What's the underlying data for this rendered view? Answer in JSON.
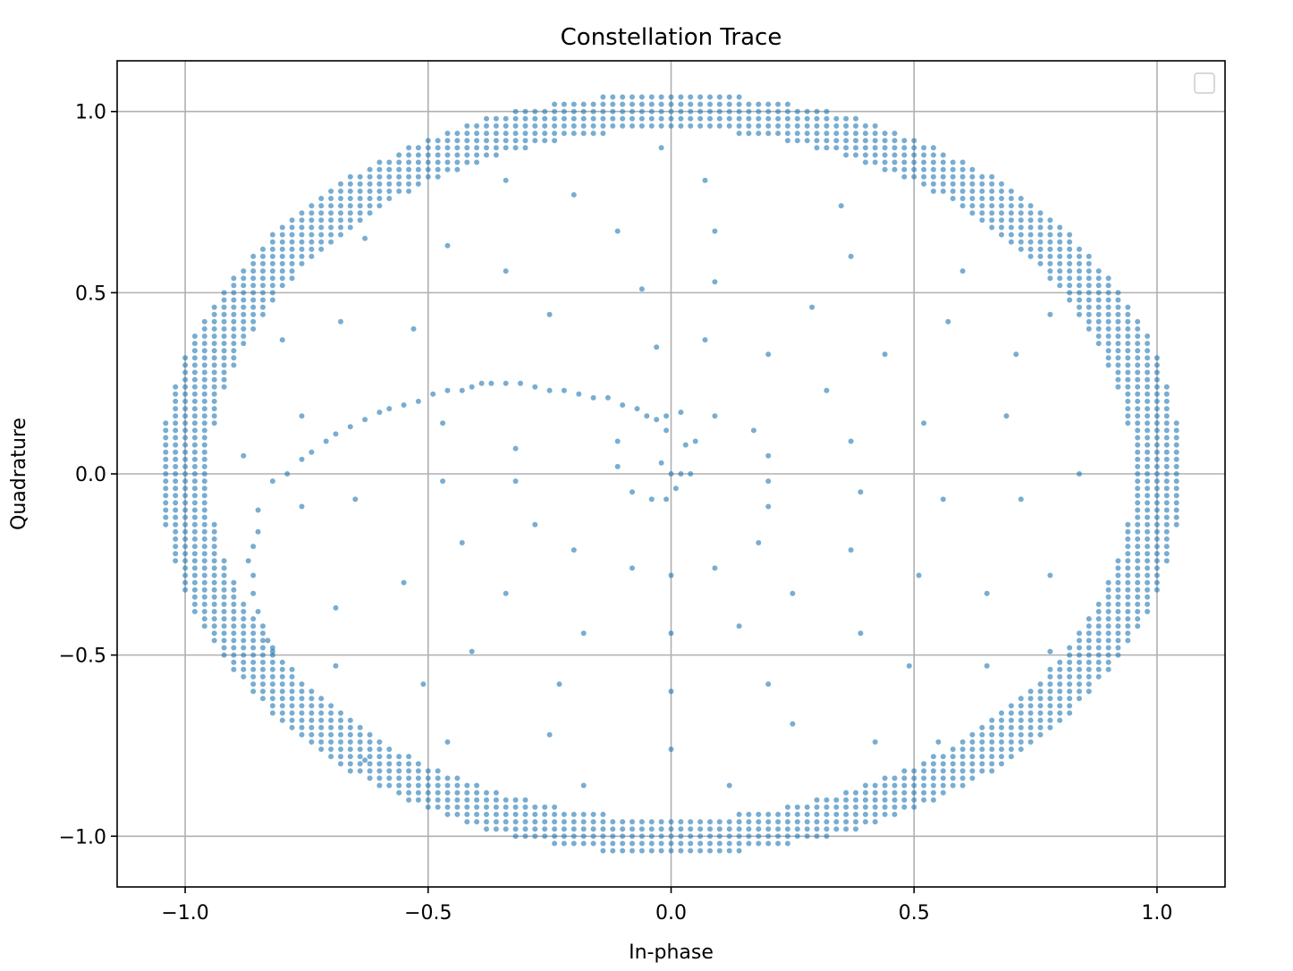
{
  "chart_data": {
    "type": "scatter",
    "title": "Constellation Trace",
    "xlabel": "In-phase",
    "ylabel": "Quadrature",
    "xlim": [
      -1.14,
      1.14
    ],
    "ylim": [
      -1.14,
      1.14
    ],
    "xticks": [
      -1.0,
      -0.5,
      0.0,
      0.5,
      1.0
    ],
    "xtick_labels": [
      "−1.0",
      "−0.5",
      "0.0",
      "0.5",
      "1.0"
    ],
    "yticks": [
      -1.0,
      -0.5,
      0.0,
      0.5,
      1.0
    ],
    "ytick_labels": [
      "−1.0",
      "−0.5",
      "0.0",
      "0.5",
      "1.0"
    ],
    "grid": true,
    "legend": {
      "placement": "top-right",
      "entries": []
    },
    "marker_color": "#1f77b4",
    "marker_alpha": 0.6,
    "series": [
      {
        "ring": {
          "shape": "ellipse",
          "center": [
            0,
            0
          ],
          "rx": 1.0,
          "ry": 1.0,
          "ring_spread": 0.04,
          "dot_spacing": 0.02,
          "samples": 1200
        },
        "inner_arc_points": [
          [
            -0.82,
            -0.02
          ],
          [
            -0.79,
            0.0
          ],
          [
            -0.76,
            0.04
          ],
          [
            -0.74,
            0.06
          ],
          [
            -0.71,
            0.09
          ],
          [
            -0.69,
            0.11
          ],
          [
            -0.66,
            0.13
          ],
          [
            -0.63,
            0.15
          ],
          [
            -0.6,
            0.17
          ],
          [
            -0.58,
            0.18
          ],
          [
            -0.55,
            0.19
          ],
          [
            -0.52,
            0.2
          ],
          [
            -0.49,
            0.22
          ],
          [
            -0.46,
            0.23
          ],
          [
            -0.43,
            0.23
          ],
          [
            -0.41,
            0.24
          ],
          [
            -0.39,
            0.25
          ],
          [
            -0.37,
            0.25
          ],
          [
            -0.34,
            0.25
          ],
          [
            -0.31,
            0.25
          ],
          [
            -0.28,
            0.24
          ],
          [
            -0.25,
            0.23
          ],
          [
            -0.22,
            0.23
          ],
          [
            -0.19,
            0.22
          ],
          [
            -0.16,
            0.21
          ],
          [
            -0.13,
            0.21
          ],
          [
            -0.1,
            0.19
          ],
          [
            -0.07,
            0.18
          ],
          [
            -0.05,
            0.16
          ],
          [
            -0.03,
            0.15
          ],
          [
            -0.01,
            0.16
          ],
          [
            0.0,
            0.0
          ],
          [
            0.02,
            0.0
          ],
          [
            0.04,
            0.0
          ],
          [
            -0.02,
            0.03
          ],
          [
            0.03,
            0.08
          ],
          [
            0.05,
            0.09
          ],
          [
            -0.01,
            0.12
          ],
          [
            0.02,
            0.17
          ],
          [
            -0.11,
            0.09
          ],
          [
            -0.11,
            0.02
          ],
          [
            -0.08,
            -0.05
          ],
          [
            -0.04,
            -0.07
          ],
          [
            0.01,
            -0.04
          ],
          [
            -0.01,
            -0.07
          ],
          [
            -0.85,
            -0.1
          ],
          [
            -0.85,
            -0.16
          ],
          [
            -0.86,
            -0.2
          ],
          [
            -0.87,
            -0.24
          ],
          [
            -0.86,
            -0.28
          ],
          [
            -0.86,
            -0.33
          ],
          [
            -0.85,
            -0.38
          ],
          [
            -0.84,
            -0.42
          ],
          [
            -0.83,
            -0.46
          ],
          [
            -0.82,
            -0.49
          ]
        ],
        "interior_points": [
          [
            -0.63,
            0.65
          ],
          [
            -0.46,
            0.63
          ],
          [
            -0.34,
            0.81
          ],
          [
            -0.2,
            0.77
          ],
          [
            -0.11,
            0.67
          ],
          [
            -0.02,
            0.9
          ],
          [
            0.07,
            0.81
          ],
          [
            0.09,
            0.67
          ],
          [
            0.35,
            0.74
          ],
          [
            0.37,
            0.6
          ],
          [
            0.6,
            0.56
          ],
          [
            0.29,
            0.46
          ],
          [
            0.09,
            0.53
          ],
          [
            -0.06,
            0.51
          ],
          [
            -0.34,
            0.56
          ],
          [
            -0.25,
            0.44
          ],
          [
            -0.03,
            0.35
          ],
          [
            0.07,
            0.37
          ],
          [
            0.2,
            0.33
          ],
          [
            0.44,
            0.33
          ],
          [
            0.57,
            0.42
          ],
          [
            0.71,
            0.33
          ],
          [
            0.78,
            0.44
          ],
          [
            -0.68,
            0.42
          ],
          [
            -0.53,
            0.4
          ],
          [
            -0.8,
            0.37
          ],
          [
            0.32,
            0.23
          ],
          [
            0.09,
            0.16
          ],
          [
            0.17,
            0.12
          ],
          [
            0.37,
            0.09
          ],
          [
            0.52,
            0.14
          ],
          [
            0.69,
            0.16
          ],
          [
            0.2,
            0.05
          ],
          [
            -0.32,
            0.07
          ],
          [
            -0.47,
            0.14
          ],
          [
            -0.76,
            0.16
          ],
          [
            -0.88,
            0.05
          ],
          [
            0.2,
            -0.02
          ],
          [
            0.2,
            -0.09
          ],
          [
            0.39,
            -0.05
          ],
          [
            0.56,
            -0.07
          ],
          [
            0.72,
            -0.07
          ],
          [
            0.84,
            0.0
          ],
          [
            -0.32,
            -0.02
          ],
          [
            -0.47,
            -0.02
          ],
          [
            -0.65,
            -0.07
          ],
          [
            -0.76,
            -0.09
          ],
          [
            -0.28,
            -0.14
          ],
          [
            -0.2,
            -0.21
          ],
          [
            -0.08,
            -0.26
          ],
          [
            0.0,
            -0.28
          ],
          [
            0.09,
            -0.26
          ],
          [
            0.18,
            -0.19
          ],
          [
            0.37,
            -0.21
          ],
          [
            0.51,
            -0.28
          ],
          [
            0.65,
            -0.33
          ],
          [
            0.78,
            -0.28
          ],
          [
            0.25,
            -0.33
          ],
          [
            0.14,
            -0.42
          ],
          [
            0.0,
            -0.44
          ],
          [
            -0.18,
            -0.44
          ],
          [
            -0.34,
            -0.33
          ],
          [
            -0.43,
            -0.19
          ],
          [
            -0.55,
            -0.3
          ],
          [
            -0.41,
            -0.49
          ],
          [
            -0.69,
            -0.37
          ],
          [
            0.39,
            -0.44
          ],
          [
            0.49,
            -0.53
          ],
          [
            0.65,
            -0.53
          ],
          [
            0.78,
            -0.49
          ],
          [
            -0.51,
            -0.58
          ],
          [
            -0.23,
            -0.58
          ],
          [
            0.0,
            -0.6
          ],
          [
            0.2,
            -0.58
          ],
          [
            -0.69,
            -0.53
          ],
          [
            -0.25,
            -0.72
          ],
          [
            -0.46,
            -0.74
          ],
          [
            0.25,
            -0.69
          ],
          [
            0.42,
            -0.74
          ],
          [
            0.55,
            -0.74
          ],
          [
            0.12,
            -0.86
          ],
          [
            -0.18,
            -0.86
          ],
          [
            0.0,
            -0.76
          ],
          [
            -0.63,
            -0.79
          ]
        ]
      }
    ]
  }
}
